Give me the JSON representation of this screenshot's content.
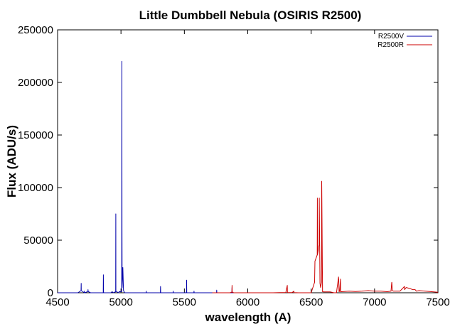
{
  "chart_data": {
    "type": "line",
    "title": "Little Dumbbell Nebula (OSIRIS R2500)",
    "xlabel": "wavelength (A)",
    "ylabel": "Flux (ADU/s)",
    "xlim": [
      4500,
      7500
    ],
    "ylim": [
      0,
      250000
    ],
    "xticks": [
      4500,
      5000,
      5500,
      6000,
      6500,
      7000,
      7500
    ],
    "yticks": [
      0,
      50000,
      100000,
      150000,
      200000,
      250000
    ],
    "legend_position": "top-right",
    "grid": false,
    "series": [
      {
        "name": "R2500V",
        "color": "#0000aa",
        "x": [
          4500,
          4660,
          4685,
          4686,
          4687,
          4712,
          4711,
          4713,
          4740,
          4740,
          4741,
          4760,
          4860,
          4861,
          4862,
          4863,
          4890,
          4920,
          4930,
          4940,
          4958,
          4959,
          4960,
          4980,
          4985,
          5006,
          5007,
          5008,
          5009,
          5015,
          5020,
          5030,
          5050,
          5100,
          5150,
          5199,
          5200,
          5201,
          5250,
          5300,
          5311,
          5312,
          5313,
          5350,
          5400,
          5411,
          5412,
          5413,
          5450,
          5500,
          5515,
          5517,
          5518,
          5519,
          5550,
          5575,
          5576,
          5577,
          5600,
          5650,
          5700,
          5720,
          5740,
          5754,
          5755,
          5756,
          5780,
          5800,
          5840,
          5860,
          5875,
          5876,
          5877,
          5890,
          5900
        ],
        "y": [
          0,
          0,
          2000,
          9000,
          2000,
          0,
          1500,
          0,
          1200,
          3000,
          1200,
          0,
          0,
          17000,
          3000,
          0,
          0,
          0,
          1000,
          0,
          1000,
          75000,
          1500,
          0,
          1000,
          1000,
          220000,
          60000,
          5000,
          24000,
          2000,
          0,
          0,
          0,
          0,
          0,
          1500,
          0,
          0,
          0,
          0,
          6000,
          0,
          0,
          0,
          0,
          1500,
          0,
          0,
          0,
          0,
          2000,
          12000,
          0,
          0,
          0,
          1500,
          0,
          0,
          0,
          0,
          0,
          0,
          0,
          2500,
          0,
          0,
          0,
          0,
          0,
          0,
          5000,
          0,
          0,
          0
        ]
      },
      {
        "name": "R2500R",
        "color": "#cc0000",
        "x": [
          5720,
          5800,
          5850,
          5860,
          5870,
          5875,
          5876,
          5877,
          5880,
          5890,
          5900,
          6000,
          6100,
          6200,
          6250,
          6280,
          6300,
          6310,
          6312,
          6313,
          6350,
          6364,
          6365,
          6400,
          6450,
          6500,
          6527,
          6530,
          6548,
          6549,
          6550,
          6555,
          6562,
          6563,
          6564,
          6570,
          6575,
          6582,
          6583,
          6584,
          6590,
          6600,
          6650,
          6680,
          6690,
          6700,
          6716,
          6718,
          6720,
          6725,
          6730,
          6731,
          6732,
          6740,
          6800,
          6850,
          6900,
          6950,
          7000,
          7050,
          7100,
          7130,
          7135,
          7136,
          7140,
          7150,
          7180,
          7200,
          7236,
          7237,
          7250,
          7280,
          7300,
          7320,
          7330,
          7350,
          7400,
          7450,
          7500
        ],
        "y": [
          0,
          0,
          0,
          0,
          500,
          500,
          7000,
          1000,
          500,
          0,
          0,
          0,
          0,
          0,
          200,
          200,
          300,
          6000,
          7000,
          300,
          200,
          1500,
          200,
          0,
          0,
          0,
          10000,
          30000,
          36000,
          90000,
          36000,
          40000,
          45000,
          45000,
          90000,
          9000,
          5000,
          10000,
          106000,
          100000,
          1000,
          800,
          800,
          0,
          0,
          0,
          15000,
          12000,
          1000,
          1500,
          11000,
          13000,
          1000,
          1000,
          1500,
          1200,
          1500,
          2000,
          1500,
          1500,
          1000,
          1500,
          9000,
          10000,
          2000,
          1500,
          1500,
          1500,
          6000,
          3000,
          5000,
          4000,
          3000,
          3000,
          1500,
          2000,
          1500,
          1000,
          500
        ]
      }
    ]
  }
}
